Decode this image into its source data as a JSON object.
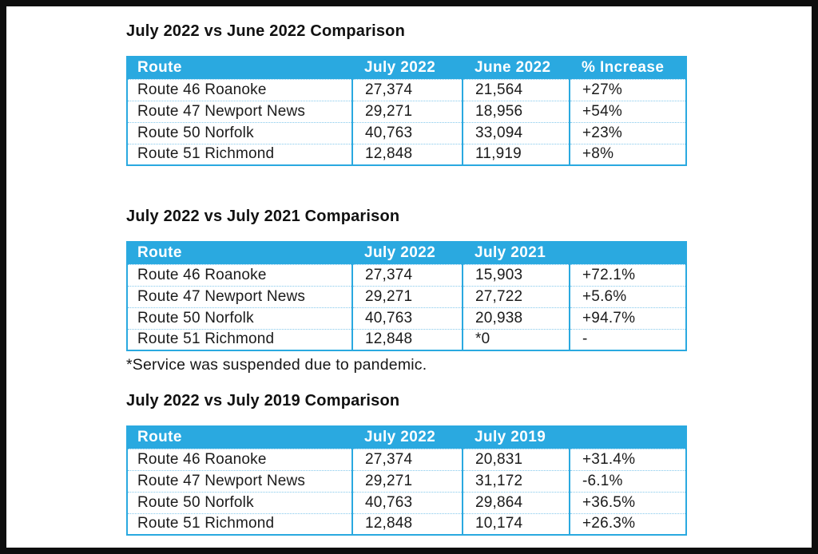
{
  "colors": {
    "header_blue": "#2aa9e0",
    "row_separator_blue": "#85c9ec",
    "frame_black": "#0d0d0d",
    "text": "#1b1b1b"
  },
  "tables": [
    {
      "title": "July 2022 vs June 2022 Comparison",
      "headers": [
        "Route",
        "July 2022",
        "June 2022",
        "% Increase"
      ],
      "rows": [
        [
          "Route 46 Roanoke",
          "27,374",
          "21,564",
          "+27%"
        ],
        [
          "Route 47 Newport News",
          "29,271",
          "18,956",
          "+54%"
        ],
        [
          "Route 50 Norfolk",
          "40,763",
          "33,094",
          "+23%"
        ],
        [
          "Route 51 Richmond",
          "12,848",
          "11,919",
          "+8%"
        ]
      ],
      "footnote": ""
    },
    {
      "title": "July 2022 vs July 2021 Comparison",
      "headers": [
        "Route",
        "July 2022",
        "July 2021",
        ""
      ],
      "rows": [
        [
          "Route 46 Roanoke",
          "27,374",
          "15,903",
          "+72.1%"
        ],
        [
          "Route 47 Newport News",
          "29,271",
          "27,722",
          "+5.6%"
        ],
        [
          "Route 50 Norfolk",
          "40,763",
          "20,938",
          "+94.7%"
        ],
        [
          "Route 51 Richmond",
          "12,848",
          "*0",
          "-"
        ]
      ],
      "footnote": "*Service was suspended due to pandemic."
    },
    {
      "title": "July 2022 vs July 2019 Comparison",
      "headers": [
        "Route",
        "July 2022",
        "July 2019",
        ""
      ],
      "rows": [
        [
          "Route 46 Roanoke",
          "27,374",
          "20,831",
          "+31.4%"
        ],
        [
          "Route 47 Newport News",
          "29,271",
          "31,172",
          "-6.1%"
        ],
        [
          "Route 50 Norfolk",
          "40,763",
          "29,864",
          "+36.5%"
        ],
        [
          "Route 51 Richmond",
          "12,848",
          "10,174",
          "+26.3%"
        ]
      ],
      "footnote": ""
    }
  ]
}
